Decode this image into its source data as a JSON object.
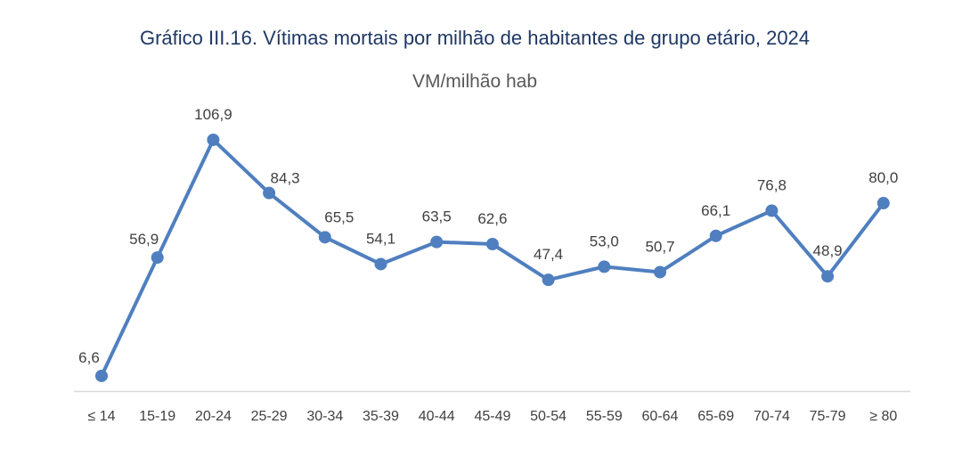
{
  "chart_data": {
    "type": "line",
    "title": "Gráfico III.16. Vítimas mortais por milhão de habitantes de grupo etário, 2024",
    "subtitle": "VM/milhão hab",
    "categories": [
      "≤ 14",
      "15-19",
      "20-24",
      "25-29",
      "30-34",
      "35-39",
      "40-44",
      "45-49",
      "50-54",
      "55-59",
      "60-64",
      "65-69",
      "70-74",
      "75-79",
      "≥ 80"
    ],
    "values": [
      6.6,
      56.9,
      106.9,
      84.3,
      65.5,
      54.1,
      63.5,
      62.6,
      47.4,
      53.0,
      50.7,
      66.1,
      76.8,
      48.9,
      80.0
    ],
    "labels": [
      "6,6",
      "56,9",
      "106,9",
      "84,3",
      "65,5",
      "54,1",
      "63,5",
      "62,6",
      "47,4",
      "53,0",
      "50,7",
      "66,1",
      "76,8",
      "48,9",
      "80,0"
    ],
    "ylim": [
      0,
      110
    ],
    "grid": false,
    "series_color": "#4f7fbf"
  }
}
